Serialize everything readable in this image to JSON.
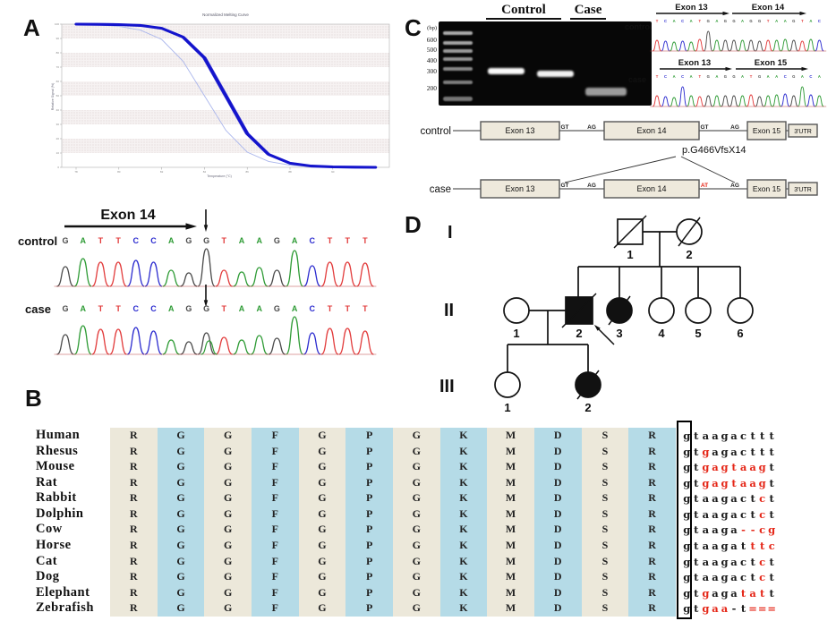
{
  "panels": {
    "a": "A",
    "b": "B",
    "c": "C",
    "d": "D"
  },
  "chart_data": {
    "type": "line",
    "title": "Normalized Melting Curve",
    "xlabel": "Temperature (°C)",
    "ylabel": "Relative Signal (%)",
    "x": [
      78,
      79,
      80,
      81,
      82,
      83,
      84,
      85,
      86,
      87,
      88,
      89,
      90,
      91,
      92
    ],
    "series": [
      {
        "name": "control melt curves (thick)",
        "color": "#1414cc",
        "width": 3.1,
        "values": [
          100,
          99.9,
          99.7,
          99.1,
          97.1,
          91.0,
          76.5,
          50,
          23.5,
          9.0,
          2.9,
          0.9,
          0.3,
          0.1,
          0
        ]
      },
      {
        "name": "case melt curve (thin)",
        "color": "#aab6ec",
        "width": 0.9,
        "values": [
          99.8,
          99.5,
          98.5,
          95.9,
          89.4,
          74.1,
          50,
          25.9,
          10.6,
          4.1,
          1.5,
          0.5,
          0.2,
          0.1,
          0
        ]
      }
    ],
    "ylim": [
      0,
      100
    ],
    "yticks": [
      0,
      10,
      20,
      30,
      40,
      50,
      60,
      70,
      80,
      90,
      100
    ],
    "xticks": [
      78,
      80,
      82,
      84,
      86,
      88,
      90
    ],
    "grid": "alternating dotted bands",
    "legend": "none"
  },
  "base_colors": {
    "A": "#2e9b35",
    "C": "#2b2bcf",
    "G": "#4a4a4a",
    "T": "#e23b3b"
  },
  "sanger_a": {
    "exon_arrow_label": "Exon 14",
    "rows": [
      {
        "label": "control",
        "seq": "GATTCCAGGTAAGACTTT",
        "heights": [
          22,
          31,
          27,
          27,
          29,
          27,
          18,
          15,
          42,
          18,
          16,
          21,
          18,
          40,
          23,
          27,
          27,
          26
        ],
        "arrow_index": 8
      },
      {
        "label": "case",
        "seq": "GATTCCAGGTAAGACTTT",
        "heights": [
          22,
          32,
          28,
          28,
          30,
          26,
          16,
          14,
          24,
          19,
          16,
          21,
          18,
          42,
          24,
          29,
          29,
          26
        ],
        "arrow_index": 8,
        "extra_peak": {
          "index": 8,
          "base": "A",
          "height": 15
        }
      }
    ]
  },
  "gel": {
    "lane_headers": [
      "Control",
      "Case"
    ],
    "bp_label": "(bp)",
    "markers": [
      "600",
      "500",
      "400",
      "300",
      "200"
    ],
    "ladder_offsets": [
      11,
      22,
      31,
      40,
      51,
      66,
      84
    ],
    "sample_bands": [
      "control-lane-1 ~300bp",
      "control-lane-2 ~300bp",
      "case-lane ~150bp"
    ]
  },
  "mini_chrom": {
    "rows": [
      {
        "label": "control",
        "arrows": [
          "Exon 13",
          "Exon 14"
        ],
        "seq": "TCACATGAGGAGGTAAGTAC",
        "heights": [
          12,
          11,
          10,
          11,
          10,
          13,
          22,
          12,
          12,
          12,
          12,
          12,
          11,
          12,
          12,
          13,
          12,
          11,
          13,
          12
        ]
      },
      {
        "label": "case",
        "arrows": [
          "Exon 13",
          "Exon 15"
        ],
        "seq": "TCACATGAGGATGAACGACA",
        "heights": [
          12,
          11,
          10,
          22,
          12,
          11,
          12,
          12,
          12,
          12,
          12,
          13,
          11,
          12,
          13,
          14,
          12,
          22,
          13,
          12
        ]
      }
    ]
  },
  "exon_map": {
    "mutation_label": "p.G466VfsX14",
    "mutant_color": "#e52718",
    "rows": [
      {
        "label": "control",
        "boxes": [
          "Exon 13",
          "Exon 14",
          "Exon 15",
          "3'UTR"
        ],
        "sites": [
          "GT",
          "AG",
          "GT",
          "AG"
        ],
        "site_red": [
          false,
          false,
          false,
          false
        ],
        "splice": false
      },
      {
        "label": "case",
        "boxes": [
          "Exon 13",
          "Exon 14",
          "Exon 15",
          "3'UTR"
        ],
        "sites": [
          "GT",
          "AG",
          "AT",
          "AG"
        ],
        "site_red": [
          false,
          false,
          true,
          false
        ],
        "splice": true
      }
    ]
  },
  "pedigree": {
    "generation_labels": [
      "I",
      "II",
      "III"
    ],
    "individuals": [
      {
        "gen": "I",
        "n": "1",
        "shape": "square",
        "affected": false,
        "deceased": true,
        "proband": false
      },
      {
        "gen": "I",
        "n": "2",
        "shape": "circle",
        "affected": false,
        "deceased": true,
        "proband": false
      },
      {
        "gen": "II",
        "n": "1",
        "shape": "circle",
        "affected": false,
        "deceased": false,
        "proband": false
      },
      {
        "gen": "II",
        "n": "2",
        "shape": "square",
        "affected": true,
        "deceased": true,
        "proband": true
      },
      {
        "gen": "II",
        "n": "3",
        "shape": "circle",
        "affected": true,
        "deceased": true,
        "proband": false
      },
      {
        "gen": "II",
        "n": "4",
        "shape": "circle",
        "affected": false,
        "deceased": false,
        "proband": false
      },
      {
        "gen": "II",
        "n": "5",
        "shape": "circle",
        "affected": false,
        "deceased": false,
        "proband": false
      },
      {
        "gen": "II",
        "n": "6",
        "shape": "circle",
        "affected": false,
        "deceased": false,
        "proband": false
      },
      {
        "gen": "III",
        "n": "1",
        "shape": "circle",
        "affected": false,
        "deceased": false,
        "proband": false
      },
      {
        "gen": "III",
        "n": "2",
        "shape": "circle",
        "affected": true,
        "deceased": true,
        "proband": false
      }
    ]
  },
  "alignment": {
    "aa_columns": [
      "R",
      "G",
      "G",
      "F",
      "G",
      "P",
      "G",
      "K",
      "M",
      "D",
      "S",
      "R"
    ],
    "col_colors": [
      "#ece8da",
      "#b5dbe7"
    ],
    "red": "#e52718",
    "rows": [
      {
        "name": "Human",
        "nt": "gtaagacttt",
        "red_idx": []
      },
      {
        "name": "Rhesus",
        "nt": "gtgagacttt",
        "red_idx": [
          2
        ]
      },
      {
        "name": "Mouse",
        "nt": "gtgagtaagt",
        "red_idx": [
          2,
          3,
          4,
          5,
          6,
          7,
          8
        ]
      },
      {
        "name": "Rat",
        "nt": "gtgagtaagt",
        "red_idx": [
          2,
          3,
          4,
          5,
          6,
          7,
          8
        ]
      },
      {
        "name": "Rabbit",
        "nt": "gtaagactct",
        "red_idx": [
          8
        ]
      },
      {
        "name": "Dolphin",
        "nt": "gtaagactct",
        "red_idx": [
          8
        ]
      },
      {
        "name": "Cow",
        "nt": "gtaaga--cg",
        "red_idx": [
          6,
          7,
          8,
          9
        ]
      },
      {
        "name": "Horse",
        "nt": "gtaagatttc",
        "red_idx": [
          7,
          8,
          9
        ]
      },
      {
        "name": "Cat",
        "nt": "gtaagactct",
        "red_idx": [
          8
        ]
      },
      {
        "name": "Dog",
        "nt": "gtaagactct",
        "red_idx": [
          8
        ]
      },
      {
        "name": "Elephant",
        "nt": "gtgagatatt",
        "red_idx": [
          2,
          6,
          7,
          8
        ]
      },
      {
        "name": "Zebrafish",
        "nt": "gtgaa-t===",
        "red_idx": [
          2,
          3,
          4,
          7,
          8,
          9
        ]
      }
    ]
  }
}
